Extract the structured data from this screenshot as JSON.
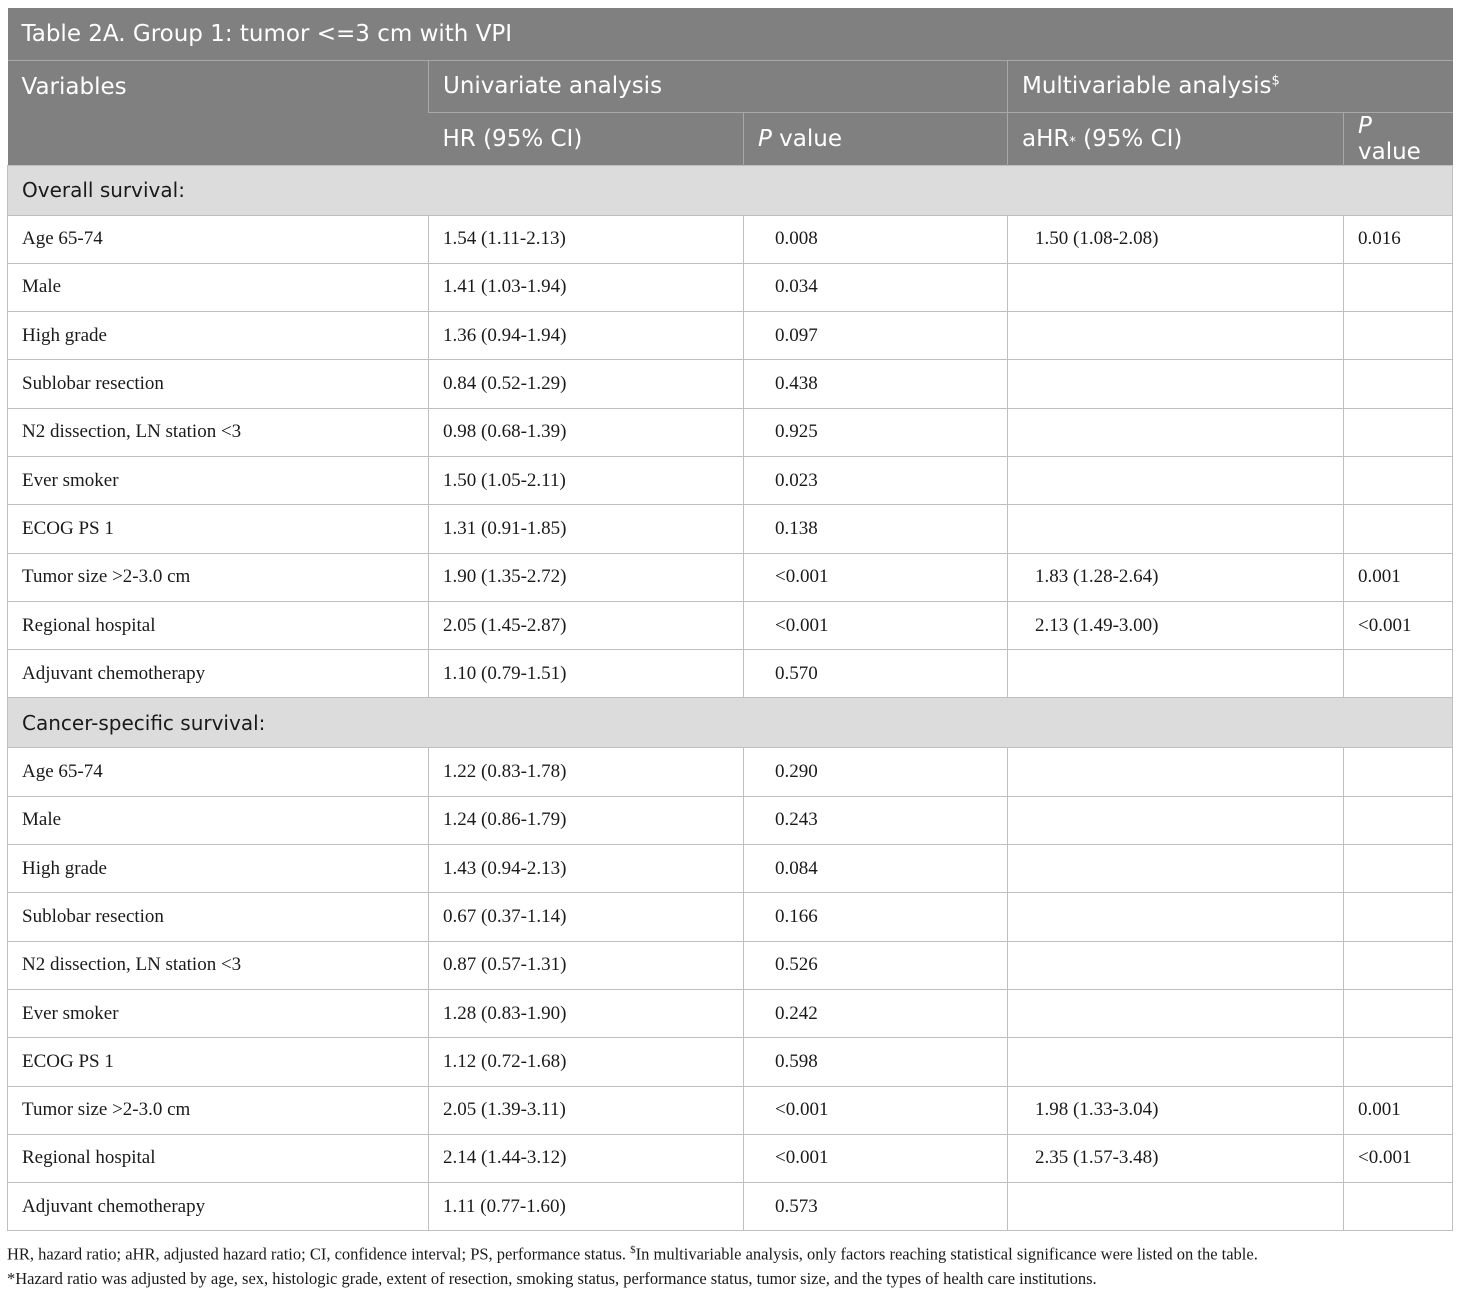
{
  "title": "Table 2A. Group 1: tumor <=3 cm with VPI",
  "headers": {
    "variables": "Variables",
    "univariate": "Univariate analysis",
    "multivariable": "Multivariable analysis",
    "multivariable_sup": "$",
    "hr": "HR (95% CI)",
    "p_italic": "P",
    "p_rest": " value",
    "ahr": "aHR",
    "ahr_sup": "*",
    "ahr_rest": " (95% CI)",
    "p2_italic": "P",
    "p2_rest": " value"
  },
  "sections": [
    {
      "label": "Overall survival:",
      "rows": [
        {
          "variable": "Age 65-74",
          "hr": "1.54 (1.11-2.13)",
          "p": "0.008",
          "ahr": "1.50 (1.08-2.08)",
          "ap": "0.016"
        },
        {
          "variable": "Male",
          "hr": "1.41 (1.03-1.94)",
          "p": "0.034",
          "ahr": "",
          "ap": ""
        },
        {
          "variable": "High grade",
          "hr": "1.36 (0.94-1.94)",
          "p": "0.097",
          "ahr": "",
          "ap": ""
        },
        {
          "variable": "Sublobar resection",
          "hr": "0.84 (0.52-1.29)",
          "p": "0.438",
          "ahr": "",
          "ap": ""
        },
        {
          "variable": "N2 dissection, LN station <3",
          "hr": "0.98 (0.68-1.39)",
          "p": "0.925",
          "ahr": "",
          "ap": ""
        },
        {
          "variable": "Ever smoker",
          "hr": "1.50 (1.05-2.11)",
          "p": "0.023",
          "ahr": "",
          "ap": ""
        },
        {
          "variable": "ECOG PS 1",
          "hr": "1.31 (0.91-1.85)",
          "p": "0.138",
          "ahr": "",
          "ap": ""
        },
        {
          "variable": "Tumor size >2-3.0 cm",
          "hr": "1.90 (1.35-2.72)",
          "p": "<0.001",
          "ahr": "1.83 (1.28-2.64)",
          "ap": "0.001"
        },
        {
          "variable": "Regional hospital",
          "hr": "2.05 (1.45-2.87)",
          "p": "<0.001",
          "ahr": "2.13 (1.49-3.00)",
          "ap": "<0.001"
        },
        {
          "variable": "Adjuvant chemotherapy",
          "hr": "1.10 (0.79-1.51)",
          "p": "0.570",
          "ahr": "",
          "ap": ""
        }
      ]
    },
    {
      "label": "Cancer-specific survival:",
      "rows": [
        {
          "variable": "Age 65-74",
          "hr": "1.22 (0.83-1.78)",
          "p": "0.290",
          "ahr": "",
          "ap": ""
        },
        {
          "variable": "Male",
          "hr": "1.24 (0.86-1.79)",
          "p": "0.243",
          "ahr": "",
          "ap": ""
        },
        {
          "variable": "High grade",
          "hr": "1.43 (0.94-2.13)",
          "p": "0.084",
          "ahr": "",
          "ap": ""
        },
        {
          "variable": "Sublobar resection",
          "hr": "0.67 (0.37-1.14)",
          "p": "0.166",
          "ahr": "",
          "ap": ""
        },
        {
          "variable": "N2 dissection, LN station <3",
          "hr": "0.87 (0.57-1.31)",
          "p": "0.526",
          "ahr": "",
          "ap": ""
        },
        {
          "variable": "Ever smoker",
          "hr": "1.28 (0.83-1.90)",
          "p": "0.242",
          "ahr": "",
          "ap": ""
        },
        {
          "variable": "ECOG PS 1",
          "hr": "1.12 (0.72-1.68)",
          "p": "0.598",
          "ahr": "",
          "ap": ""
        },
        {
          "variable": "Tumor size >2-3.0 cm",
          "hr": "2.05 (1.39-3.11)",
          "p": "<0.001",
          "ahr": "1.98 (1.33-3.04)",
          "ap": "0.001"
        },
        {
          "variable": "Regional hospital",
          "hr": "2.14 (1.44-3.12)",
          "p": "<0.001",
          "ahr": "2.35 (1.57-3.48)",
          "ap": "<0.001"
        },
        {
          "variable": "Adjuvant chemotherapy",
          "hr": "1.11 (0.77-1.60)",
          "p": "0.573",
          "ahr": "",
          "ap": ""
        }
      ]
    }
  ],
  "footnotes": {
    "line1_a": "HR, hazard ratio; aHR, adjusted hazard ratio; CI, confidence interval; PS, performance status. ",
    "line1_sup": "$",
    "line1_b": "In multivariable analysis, only factors reaching statistical significance were listed on the table.",
    "line2": "*Hazard ratio was adjusted by age, sex, histologic grade, extent of resection, smoking status, performance status, tumor size, and the types of health care institutions."
  }
}
